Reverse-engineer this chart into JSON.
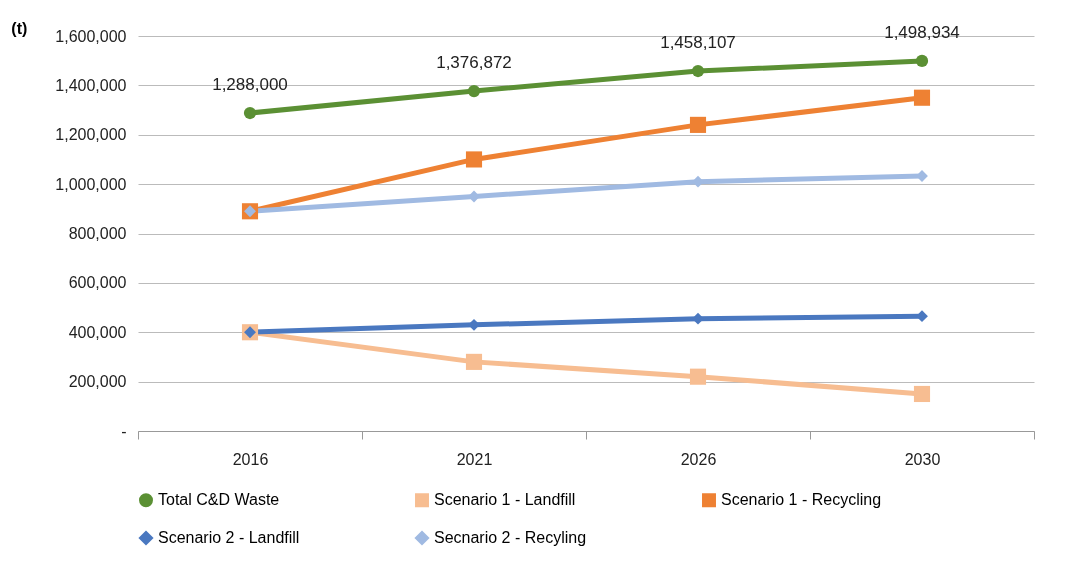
{
  "chart_data": {
    "type": "line",
    "ylabel": "(t)",
    "categories": [
      "2016",
      "2021",
      "2026",
      "2030"
    ],
    "ylim": [
      0,
      1600000
    ],
    "yticks": [
      {
        "value": 0,
        "label": "-"
      },
      {
        "value": 200000,
        "label": "200,000"
      },
      {
        "value": 400000,
        "label": "400,000"
      },
      {
        "value": 600000,
        "label": "600,000"
      },
      {
        "value": 800000,
        "label": "800,000"
      },
      {
        "value": 1000000,
        "label": "1,000,000"
      },
      {
        "value": 1200000,
        "label": "1,200,000"
      },
      {
        "value": 1400000,
        "label": "1,400,000"
      },
      {
        "value": 1600000,
        "label": "1,600,000"
      }
    ],
    "grid": "y",
    "legend": "bottom",
    "series": [
      {
        "name": "Total C&D Waste",
        "color": "#5b9034",
        "marker": "circle",
        "values": [
          1288000,
          1376872,
          1458107,
          1498934
        ],
        "value_labels": [
          "1,288,000",
          "1,376,872",
          "1,458,107",
          "1,498,934"
        ]
      },
      {
        "name": "Scenario 1 - Landfill",
        "color": "#f7bd91",
        "marker": "square",
        "values": [
          400000,
          280000,
          220000,
          150000
        ]
      },
      {
        "name": "Scenario 1 - Recycling",
        "color": "#ee8133",
        "marker": "square",
        "values": [
          890000,
          1100000,
          1240000,
          1350000
        ]
      },
      {
        "name": "Scenario 2 - Landfill",
        "color": "#4a78c0",
        "marker": "diamond",
        "values": [
          400000,
          430000,
          455000,
          465000
        ]
      },
      {
        "name": "Secnario 2 - Recyling",
        "color": "#a0bae2",
        "marker": "diamond",
        "values": [
          890000,
          950000,
          1010000,
          1033000
        ]
      }
    ]
  }
}
